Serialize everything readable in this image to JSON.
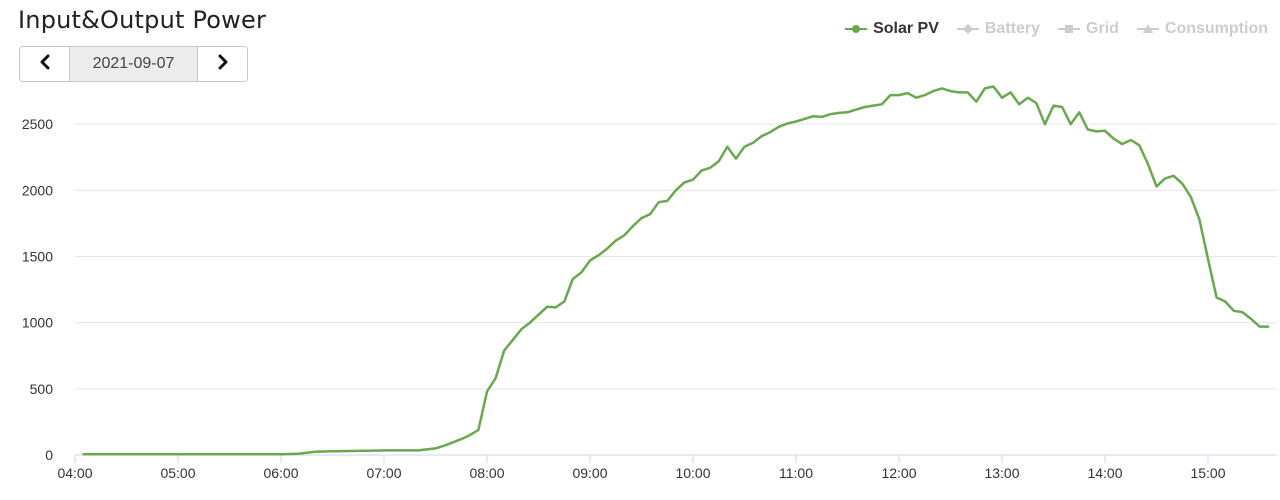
{
  "header": {
    "title": "Input&Output Power"
  },
  "date_nav": {
    "prev_icon": "chevron-left-icon",
    "date": "2021-09-07",
    "next_icon": "chevron-right-icon"
  },
  "legend": [
    {
      "label": "Solar PV",
      "active": true,
      "color": "#6aa84f",
      "symbol": "circle"
    },
    {
      "label": "Battery",
      "active": false,
      "color": "#cccccc",
      "symbol": "diamond"
    },
    {
      "label": "Grid",
      "active": false,
      "color": "#cccccc",
      "symbol": "square"
    },
    {
      "label": "Consumption",
      "active": false,
      "color": "#cccccc",
      "symbol": "triangle"
    }
  ],
  "chart_data": {
    "type": "line",
    "title": "",
    "xlabel": "",
    "ylabel": "",
    "x_ticks": [
      "04:00",
      "05:00",
      "06:00",
      "07:00",
      "08:00",
      "09:00",
      "10:00",
      "11:00",
      "12:00",
      "13:00",
      "14:00",
      "15:00"
    ],
    "y_ticks": [
      0,
      500,
      1000,
      1500,
      2000,
      2500
    ],
    "xlim": [
      "04:00",
      "15:40"
    ],
    "ylim": [
      0,
      2800
    ],
    "grid": "horizontal",
    "legend_position": "top-right",
    "series": [
      {
        "name": "Solar PV",
        "color": "#6aa84f",
        "x": [
          "04:05",
          "05:00",
          "06:00",
          "06:10",
          "06:20",
          "06:30",
          "06:40",
          "06:50",
          "07:00",
          "07:10",
          "07:20",
          "07:30",
          "07:35",
          "07:40",
          "07:45",
          "07:50",
          "07:55",
          "08:00",
          "08:05",
          "08:10",
          "08:15",
          "08:20",
          "08:25",
          "08:30",
          "08:35",
          "08:40",
          "08:45",
          "08:50",
          "08:55",
          "09:00",
          "09:05",
          "09:10",
          "09:15",
          "09:20",
          "09:25",
          "09:30",
          "09:35",
          "09:40",
          "09:45",
          "09:50",
          "09:55",
          "10:00",
          "10:05",
          "10:10",
          "10:15",
          "10:20",
          "10:25",
          "10:30",
          "10:35",
          "10:40",
          "10:45",
          "10:50",
          "10:55",
          "11:00",
          "11:05",
          "11:10",
          "11:15",
          "11:20",
          "11:25",
          "11:30",
          "11:35",
          "11:40",
          "11:45",
          "11:50",
          "11:55",
          "12:00",
          "12:05",
          "12:10",
          "12:15",
          "12:20",
          "12:25",
          "12:30",
          "12:35",
          "12:40",
          "12:45",
          "12:50",
          "12:55",
          "13:00",
          "13:05",
          "13:10",
          "13:15",
          "13:20",
          "13:25",
          "13:30",
          "13:35",
          "13:40",
          "13:45",
          "13:50",
          "13:55",
          "14:00",
          "14:05",
          "14:10",
          "14:15",
          "14:20",
          "14:25",
          "14:30",
          "14:35",
          "14:40",
          "14:45",
          "14:50",
          "14:55",
          "15:00",
          "15:05",
          "15:10",
          "15:15",
          "15:20",
          "15:25",
          "15:30",
          "15:35"
        ],
        "values": [
          5,
          5,
          5,
          10,
          25,
          28,
          30,
          32,
          35,
          35,
          35,
          50,
          70,
          95,
          120,
          150,
          190,
          480,
          580,
          790,
          870,
          950,
          1000,
          1060,
          1120,
          1115,
          1160,
          1330,
          1380,
          1470,
          1510,
          1560,
          1620,
          1660,
          1730,
          1790,
          1820,
          1910,
          1920,
          2000,
          2060,
          2080,
          2150,
          2170,
          2220,
          2330,
          2240,
          2330,
          2360,
          2410,
          2440,
          2480,
          2505,
          2520,
          2540,
          2560,
          2555,
          2575,
          2585,
          2590,
          2610,
          2630,
          2640,
          2650,
          2720,
          2720,
          2735,
          2700,
          2720,
          2750,
          2770,
          2750,
          2740,
          2740,
          2670,
          2770,
          2785,
          2700,
          2740,
          2650,
          2700,
          2660,
          2500,
          2640,
          2630,
          2500,
          2590,
          2460,
          2445,
          2450,
          2390,
          2350,
          2380,
          2340,
          2200,
          2030,
          2090,
          2110,
          2050,
          1950,
          1780,
          1480,
          1190,
          1160,
          1090,
          1080,
          1030,
          970,
          970
        ]
      }
    ]
  }
}
